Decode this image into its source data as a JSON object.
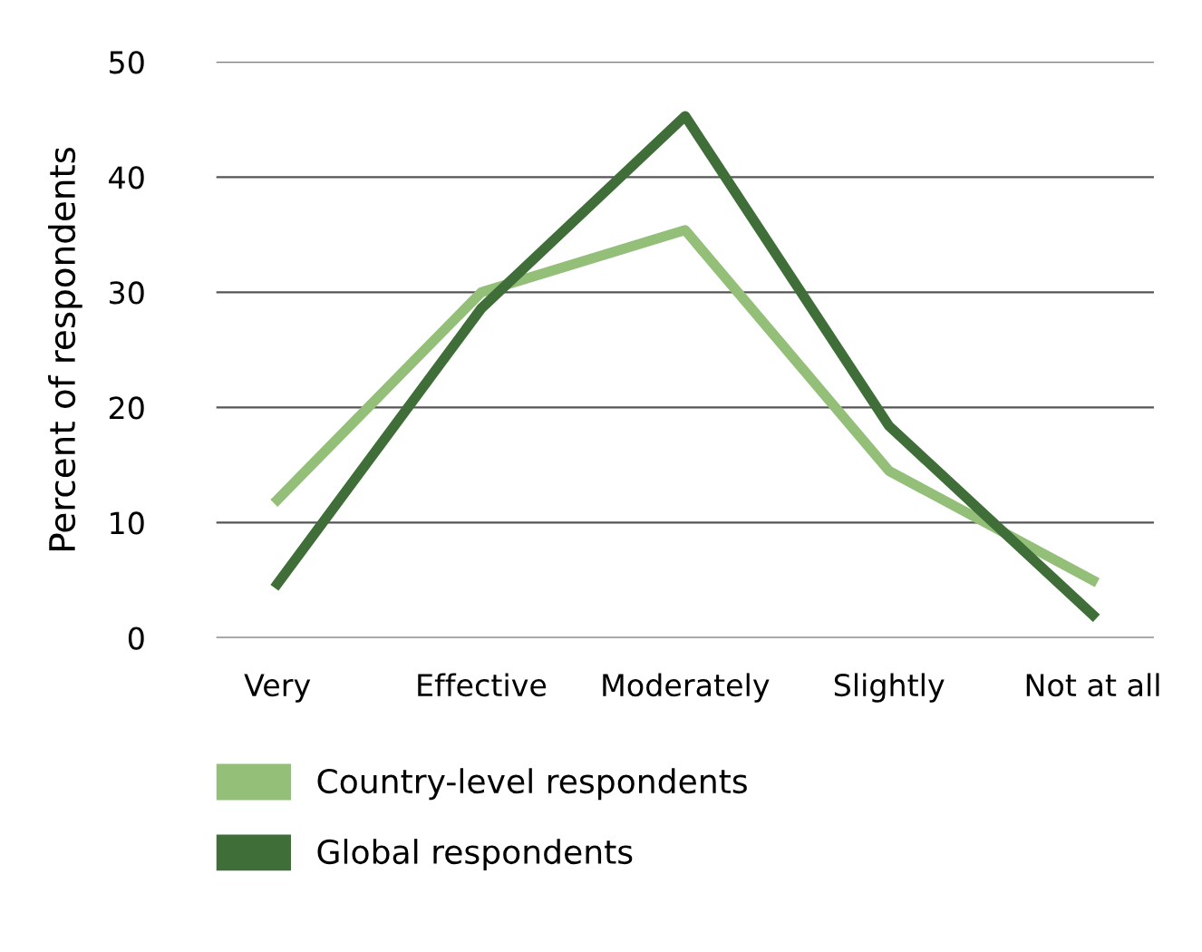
{
  "chart_data": {
    "type": "line",
    "ylabel": "Percent of respondents",
    "categories": [
      "Very",
      "Effective",
      "Moderately",
      "Slightly",
      "Not at all"
    ],
    "series": [
      {
        "name": "Country-level respondents",
        "color": "#93bf79",
        "values": [
          12,
          30,
          35.4,
          14.5,
          5
        ]
      },
      {
        "name": "Global respondents",
        "color": "#3f6e38",
        "values": [
          4.7,
          28.6,
          45.3,
          18.4,
          2
        ]
      }
    ],
    "ylim": [
      0,
      50
    ],
    "yticks": [
      0,
      10,
      20,
      30,
      40,
      50
    ],
    "grid": "y",
    "legend": "bottom",
    "line_style": "solid"
  }
}
